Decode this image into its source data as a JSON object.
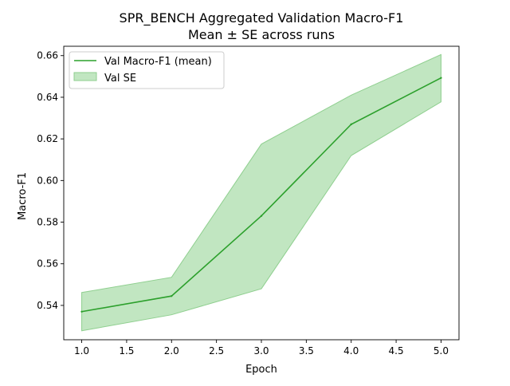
{
  "chart_data": {
    "type": "line",
    "title": "SPR_BENCH Aggregated Validation Macro-F1",
    "subtitle": "Mean ± SE across runs",
    "xlabel": "Epoch",
    "ylabel": "Macro-F1",
    "xlim": [
      0.8,
      5.2
    ],
    "ylim": [
      0.5235,
      0.6645
    ],
    "xticks": [
      1.0,
      1.5,
      2.0,
      2.5,
      3.0,
      3.5,
      4.0,
      4.5,
      5.0
    ],
    "xtick_labels": [
      "1.0",
      "1.5",
      "2.0",
      "2.5",
      "3.0",
      "3.5",
      "4.0",
      "4.5",
      "5.0"
    ],
    "yticks": [
      0.54,
      0.56,
      0.58,
      0.6,
      0.62,
      0.64,
      0.66
    ],
    "ytick_labels": [
      "0.54",
      "0.56",
      "0.58",
      "0.60",
      "0.62",
      "0.64",
      "0.66"
    ],
    "grid": false,
    "legend_position": "top-left",
    "x": [
      1,
      2,
      3,
      4,
      5
    ],
    "series": [
      {
        "name": "Val Macro-F1 (mean)",
        "values": [
          0.537,
          0.5445,
          0.583,
          0.627,
          0.6493
        ],
        "color": "#2ca02c"
      }
    ],
    "band": {
      "name": "Val SE",
      "lower": [
        0.5278,
        0.5355,
        0.548,
        0.612,
        0.6378
      ],
      "upper": [
        0.5462,
        0.5535,
        0.6175,
        0.641,
        0.6605
      ],
      "fill_color": "#98d598",
      "edge_color": "#8fcf8f"
    }
  }
}
